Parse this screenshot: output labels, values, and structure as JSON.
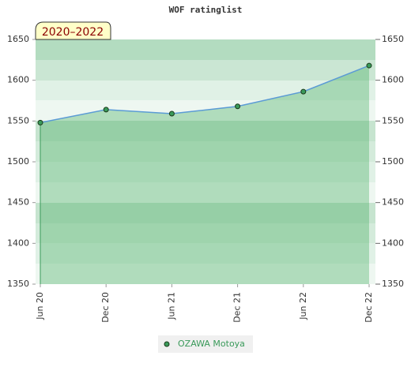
{
  "chart_data": {
    "type": "line",
    "title": "WOF ratinglist",
    "label": "2020–2022",
    "categories": [
      "Jun 20",
      "Dec 20",
      "Jun 21",
      "Dec 21",
      "Jun 22",
      "Dec 22"
    ],
    "series": [
      {
        "name": "OZAWA Motoya",
        "color": "#5b9bd5",
        "values": [
          1548,
          1564,
          1559,
          1568,
          1586,
          1618
        ]
      }
    ],
    "ylim": [
      1350,
      1650
    ],
    "yticks": [
      1350,
      1400,
      1450,
      1500,
      1550,
      1600,
      1650
    ],
    "y2lim": [
      1350,
      1650
    ],
    "y2ticks": [
      1350,
      1400,
      1450,
      1500,
      1550,
      1600,
      1650
    ]
  }
}
